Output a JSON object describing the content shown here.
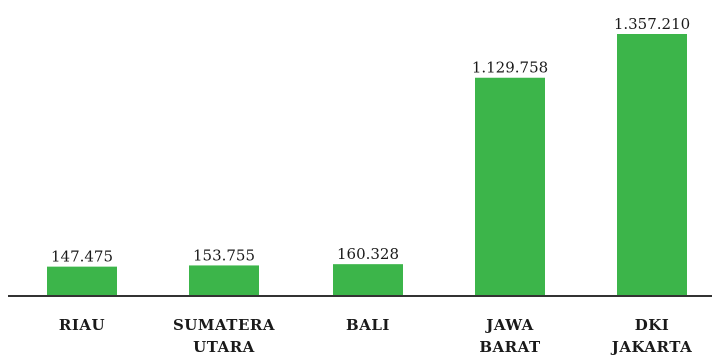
{
  "chart_data": {
    "type": "bar",
    "title": "",
    "xlabel": "",
    "ylabel": "",
    "categories": [
      [
        "RIAU"
      ],
      [
        "SUMATERA",
        "UTARA"
      ],
      [
        "BALI"
      ],
      [
        "JAWA",
        "BARAT"
      ],
      [
        "DKI",
        "JAKARTA"
      ]
    ],
    "values": [
      147475,
      153755,
      160328,
      1129758,
      1357210
    ],
    "value_labels": [
      "147.475",
      "153.755",
      "160.328",
      "1.129.758",
      "1.357.210"
    ],
    "ylim": [
      0,
      1357210
    ],
    "grid": false,
    "legend": "none",
    "colors": {
      "bar": "#3cb54a",
      "axis": "#333333",
      "text": "#1a1a1a"
    }
  }
}
